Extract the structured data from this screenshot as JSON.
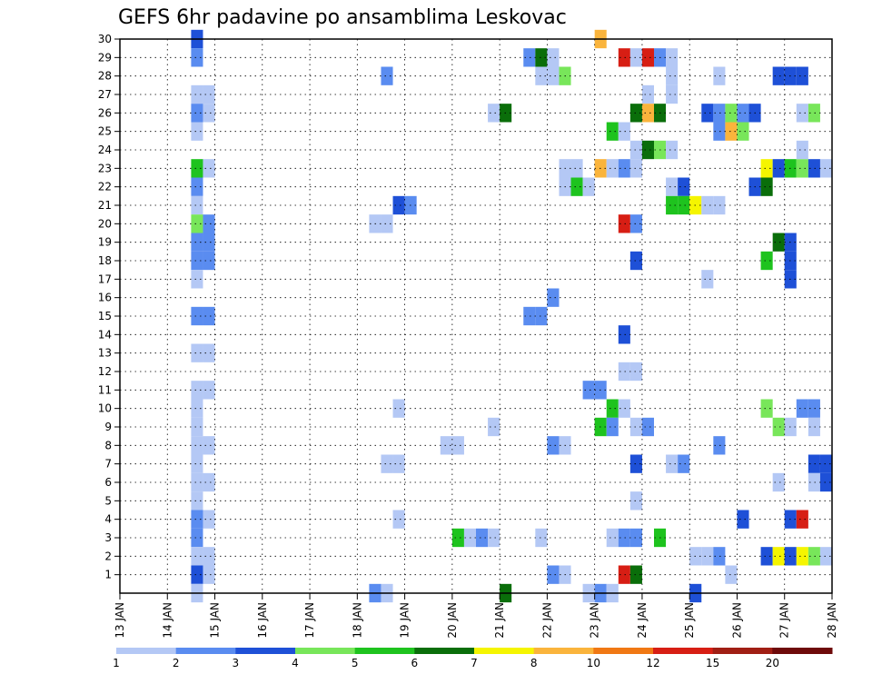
{
  "chart_data": {
    "type": "heatmap",
    "title": "GEFS 6hr padavine po ansamblima Leskovac",
    "xlabel": "",
    "ylabel": "",
    "y_ticks": [
      1,
      2,
      3,
      4,
      5,
      6,
      7,
      8,
      9,
      10,
      11,
      12,
      13,
      14,
      15,
      16,
      17,
      18,
      19,
      20,
      21,
      22,
      23,
      24,
      25,
      26,
      27,
      28,
      29,
      30
    ],
    "x_ticks": [
      "13 JAN",
      "14 JAN",
      "15 JAN",
      "16 JAN",
      "17 JAN",
      "18 JAN",
      "19 JAN",
      "20 JAN",
      "21 JAN",
      "22 JAN",
      "23 JAN",
      "24 JAN",
      "25 JAN",
      "26 JAN",
      "27 JAN",
      "28 JAN"
    ],
    "x_range_days": [
      13,
      28
    ],
    "y_range": [
      0,
      30
    ],
    "grid": true,
    "colorbar": {
      "colors": [
        "#b4c8f5",
        "#5a8cf0",
        "#1e50d7",
        "#78e65a",
        "#1ec31e",
        "#0a6e0a",
        "#f5f500",
        "#fab43c",
        "#f07814",
        "#d71e14",
        "#a01e14",
        "#6e0a0a"
      ],
      "labels": [
        "1",
        "2",
        "3",
        "4",
        "5",
        "6",
        "7",
        "8",
        "10",
        "12",
        "15",
        "20"
      ]
    },
    "cells": [
      {
        "t": "2025-01-14 12:00",
        "m": 30,
        "v": 3
      },
      {
        "t": "2025-01-14 12:00",
        "m": 29,
        "v": 2
      },
      {
        "t": "2025-01-14 12:00",
        "m": 27,
        "v": 1
      },
      {
        "t": "2025-01-14 18:00",
        "m": 27,
        "v": 1
      },
      {
        "t": "2025-01-14 12:00",
        "m": 26,
        "v": 2
      },
      {
        "t": "2025-01-14 18:00",
        "m": 26,
        "v": 1
      },
      {
        "t": "2025-01-14 12:00",
        "m": 25,
        "v": 1
      },
      {
        "t": "2025-01-14 12:00",
        "m": 23,
        "v": 5
      },
      {
        "t": "2025-01-14 18:00",
        "m": 23,
        "v": 1
      },
      {
        "t": "2025-01-14 12:00",
        "m": 22,
        "v": 2
      },
      {
        "t": "2025-01-14 12:00",
        "m": 21,
        "v": 1
      },
      {
        "t": "2025-01-14 12:00",
        "m": 20,
        "v": 4
      },
      {
        "t": "2025-01-14 18:00",
        "m": 20,
        "v": 2
      },
      {
        "t": "2025-01-14 12:00",
        "m": 19,
        "v": 2
      },
      {
        "t": "2025-01-14 18:00",
        "m": 19,
        "v": 2
      },
      {
        "t": "2025-01-14 12:00",
        "m": 18,
        "v": 2
      },
      {
        "t": "2025-01-14 18:00",
        "m": 18,
        "v": 2
      },
      {
        "t": "2025-01-14 12:00",
        "m": 17,
        "v": 1
      },
      {
        "t": "2025-01-14 12:00",
        "m": 15,
        "v": 2
      },
      {
        "t": "2025-01-14 18:00",
        "m": 15,
        "v": 2
      },
      {
        "t": "2025-01-14 12:00",
        "m": 13,
        "v": 1
      },
      {
        "t": "2025-01-14 18:00",
        "m": 13,
        "v": 1
      },
      {
        "t": "2025-01-14 12:00",
        "m": 11,
        "v": 1
      },
      {
        "t": "2025-01-14 18:00",
        "m": 11,
        "v": 1
      },
      {
        "t": "2025-01-14 12:00",
        "m": 10,
        "v": 1
      },
      {
        "t": "2025-01-14 12:00",
        "m": 9,
        "v": 1
      },
      {
        "t": "2025-01-14 12:00",
        "m": 8,
        "v": 1
      },
      {
        "t": "2025-01-14 18:00",
        "m": 8,
        "v": 1
      },
      {
        "t": "2025-01-14 12:00",
        "m": 7,
        "v": 1
      },
      {
        "t": "2025-01-14 12:00",
        "m": 6,
        "v": 1
      },
      {
        "t": "2025-01-14 18:00",
        "m": 6,
        "v": 1
      },
      {
        "t": "2025-01-14 12:00",
        "m": 5,
        "v": 1
      },
      {
        "t": "2025-01-14 12:00",
        "m": 4,
        "v": 2
      },
      {
        "t": "2025-01-14 18:00",
        "m": 4,
        "v": 1
      },
      {
        "t": "2025-01-14 12:00",
        "m": 3,
        "v": 2
      },
      {
        "t": "2025-01-14 12:00",
        "m": 2,
        "v": 1
      },
      {
        "t": "2025-01-14 18:00",
        "m": 2,
        "v": 1
      },
      {
        "t": "2025-01-14 12:00",
        "m": 1,
        "v": 3
      },
      {
        "t": "2025-01-14 18:00",
        "m": 1,
        "v": 1
      },
      {
        "t": "2025-01-14 12:00",
        "m": 0,
        "v": 1
      },
      {
        "t": "2025-01-18 12:00",
        "m": 28,
        "v": 2
      },
      {
        "t": "2025-01-18 06:00",
        "m": 20,
        "v": 1
      },
      {
        "t": "2025-01-18 12:00",
        "m": 20,
        "v": 1
      },
      {
        "t": "2025-01-18 18:00",
        "m": 21,
        "v": 3
      },
      {
        "t": "2025-01-19 00:00",
        "m": 21,
        "v": 2
      },
      {
        "t": "2025-01-18 18:00",
        "m": 10,
        "v": 1
      },
      {
        "t": "2025-01-18 12:00",
        "m": 7,
        "v": 1
      },
      {
        "t": "2025-01-18 18:00",
        "m": 7,
        "v": 1
      },
      {
        "t": "2025-01-18 18:00",
        "m": 4,
        "v": 1
      },
      {
        "t": "2025-01-18 06:00",
        "m": 0,
        "v": 2
      },
      {
        "t": "2025-01-18 12:00",
        "m": 0,
        "v": 1
      },
      {
        "t": "2025-01-19 18:00",
        "m": 8,
        "v": 1
      },
      {
        "t": "2025-01-20 00:00",
        "m": 8,
        "v": 1
      },
      {
        "t": "2025-01-20 00:00",
        "m": 3,
        "v": 5
      },
      {
        "t": "2025-01-20 06:00",
        "m": 3,
        "v": 1
      },
      {
        "t": "2025-01-20 12:00",
        "m": 3,
        "v": 2
      },
      {
        "t": "2025-01-20 18:00",
        "m": 3,
        "v": 1
      },
      {
        "t": "2025-01-20 18:00",
        "m": 26,
        "v": 1
      },
      {
        "t": "2025-01-21 00:00",
        "m": 26,
        "v": 6
      },
      {
        "t": "2025-01-20 18:00",
        "m": 9,
        "v": 1
      },
      {
        "t": "2025-01-21 00:00",
        "m": 0,
        "v": 6
      },
      {
        "t": "2025-01-21 12:00",
        "m": 29,
        "v": 2
      },
      {
        "t": "2025-01-21 18:00",
        "m": 29,
        "v": 6
      },
      {
        "t": "2025-01-22 00:00",
        "m": 29,
        "v": 1
      },
      {
        "t": "2025-01-21 18:00",
        "m": 28,
        "v": 1
      },
      {
        "t": "2025-01-22 00:00",
        "m": 28,
        "v": 1
      },
      {
        "t": "2025-01-22 06:00",
        "m": 28,
        "v": 4
      },
      {
        "t": "2025-01-22 00:00",
        "m": 16,
        "v": 2
      },
      {
        "t": "2025-01-21 12:00",
        "m": 15,
        "v": 2
      },
      {
        "t": "2025-01-21 18:00",
        "m": 15,
        "v": 2
      },
      {
        "t": "2025-01-22 00:00",
        "m": 8,
        "v": 2
      },
      {
        "t": "2025-01-22 06:00",
        "m": 8,
        "v": 1
      },
      {
        "t": "2025-01-21 18:00",
        "m": 3,
        "v": 1
      },
      {
        "t": "2025-01-22 00:00",
        "m": 1,
        "v": 2
      },
      {
        "t": "2025-01-22 06:00",
        "m": 1,
        "v": 1
      },
      {
        "t": "2025-01-22 06:00",
        "m": 23,
        "v": 1
      },
      {
        "t": "2025-01-22 12:00",
        "m": 23,
        "v": 1
      },
      {
        "t": "2025-01-22 06:00",
        "m": 22,
        "v": 1
      },
      {
        "t": "2025-01-22 12:00",
        "m": 22,
        "v": 5
      },
      {
        "t": "2025-01-22 18:00",
        "m": 22,
        "v": 1
      },
      {
        "t": "2025-01-23 00:00",
        "m": 30,
        "v": 8
      },
      {
        "t": "2025-01-23 00:00",
        "m": 23,
        "v": 8
      },
      {
        "t": "2025-01-23 06:00",
        "m": 23,
        "v": 1
      },
      {
        "t": "2025-01-23 12:00",
        "m": 23,
        "v": 2
      },
      {
        "t": "2025-01-23 18:00",
        "m": 23,
        "v": 1
      },
      {
        "t": "2025-01-23 06:00",
        "m": 25,
        "v": 5
      },
      {
        "t": "2025-01-23 12:00",
        "m": 25,
        "v": 1
      },
      {
        "t": "2025-01-22 18:00",
        "m": 11,
        "v": 2
      },
      {
        "t": "2025-01-23 00:00",
        "m": 11,
        "v": 2
      },
      {
        "t": "2025-01-23 06:00",
        "m": 10,
        "v": 5
      },
      {
        "t": "2025-01-23 12:00",
        "m": 10,
        "v": 1
      },
      {
        "t": "2025-01-23 00:00",
        "m": 9,
        "v": 5
      },
      {
        "t": "2025-01-23 06:00",
        "m": 9,
        "v": 2
      },
      {
        "t": "2025-01-23 12:00",
        "m": 14,
        "v": 3
      },
      {
        "t": "2025-01-23 12:00",
        "m": 12,
        "v": 1
      },
      {
        "t": "2025-01-23 18:00",
        "m": 12,
        "v": 1
      },
      {
        "t": "2025-01-23 06:00",
        "m": 3,
        "v": 1
      },
      {
        "t": "2025-01-23 12:00",
        "m": 3,
        "v": 2
      },
      {
        "t": "2025-01-23 18:00",
        "m": 3,
        "v": 2
      },
      {
        "t": "2025-01-23 12:00",
        "m": 1,
        "v": 10
      },
      {
        "t": "2025-01-23 18:00",
        "m": 1,
        "v": 6
      },
      {
        "t": "2025-01-22 18:00",
        "m": 0,
        "v": 1
      },
      {
        "t": "2025-01-23 00:00",
        "m": 0,
        "v": 2
      },
      {
        "t": "2025-01-23 06:00",
        "m": 0,
        "v": 1
      },
      {
        "t": "2025-01-23 12:00",
        "m": 20,
        "v": 10
      },
      {
        "t": "2025-01-23 18:00",
        "m": 20,
        "v": 2
      },
      {
        "t": "2025-01-23 18:00",
        "m": 18,
        "v": 3
      },
      {
        "t": "2025-01-23 12:00",
        "m": 29,
        "v": 10
      },
      {
        "t": "2025-01-23 18:00",
        "m": 29,
        "v": 1
      },
      {
        "t": "2025-01-24 00:00",
        "m": 29,
        "v": 10
      },
      {
        "t": "2025-01-24 06:00",
        "m": 29,
        "v": 2
      },
      {
        "t": "2025-01-24 12:00",
        "m": 29,
        "v": 1
      },
      {
        "t": "2025-01-24 00:00",
        "m": 27,
        "v": 1
      },
      {
        "t": "2025-01-23 18:00",
        "m": 26,
        "v": 6
      },
      {
        "t": "2025-01-24 00:00",
        "m": 26,
        "v": 8
      },
      {
        "t": "2025-01-24 06:00",
        "m": 26,
        "v": 6
      },
      {
        "t": "2025-01-23 18:00",
        "m": 24,
        "v": 1
      },
      {
        "t": "2025-01-24 00:00",
        "m": 24,
        "v": 6
      },
      {
        "t": "2025-01-24 06:00",
        "m": 24,
        "v": 4
      },
      {
        "t": "2025-01-24 12:00",
        "m": 24,
        "v": 1
      },
      {
        "t": "2025-01-23 18:00",
        "m": 9,
        "v": 1
      },
      {
        "t": "2025-01-24 00:00",
        "m": 9,
        "v": 2
      },
      {
        "t": "2025-01-23 18:00",
        "m": 7,
        "v": 3
      },
      {
        "t": "2025-01-23 18:00",
        "m": 5,
        "v": 1
      },
      {
        "t": "2025-01-24 06:00",
        "m": 3,
        "v": 5
      },
      {
        "t": "2025-01-24 12:00",
        "m": 28,
        "v": 1
      },
      {
        "t": "2025-01-24 12:00",
        "m": 27,
        "v": 1
      },
      {
        "t": "2025-01-24 12:00",
        "m": 22,
        "v": 1
      },
      {
        "t": "2025-01-24 18:00",
        "m": 22,
        "v": 3
      },
      {
        "t": "2025-01-24 12:00",
        "m": 21,
        "v": 5
      },
      {
        "t": "2025-01-24 18:00",
        "m": 21,
        "v": 5
      },
      {
        "t": "2025-01-25 00:00",
        "m": 21,
        "v": 7
      },
      {
        "t": "2025-01-25 06:00",
        "m": 21,
        "v": 1
      },
      {
        "t": "2025-01-25 12:00",
        "m": 21,
        "v": 1
      },
      {
        "t": "2025-01-24 12:00",
        "m": 7,
        "v": 1
      },
      {
        "t": "2025-01-24 18:00",
        "m": 7,
        "v": 2
      },
      {
        "t": "2025-01-25 00:00",
        "m": 2,
        "v": 1
      },
      {
        "t": "2025-01-25 06:00",
        "m": 2,
        "v": 1
      },
      {
        "t": "2025-01-25 12:00",
        "m": 2,
        "v": 2
      },
      {
        "t": "2025-01-25 06:00",
        "m": 17,
        "v": 1
      },
      {
        "t": "2025-01-25 00:00",
        "m": 0,
        "v": 3
      },
      {
        "t": "2025-01-25 12:00",
        "m": 28,
        "v": 1
      },
      {
        "t": "2025-01-25 06:00",
        "m": 26,
        "v": 3
      },
      {
        "t": "2025-01-25 12:00",
        "m": 26,
        "v": 2
      },
      {
        "t": "2025-01-25 18:00",
        "m": 26,
        "v": 4
      },
      {
        "t": "2025-01-26 00:00",
        "m": 26,
        "v": 2
      },
      {
        "t": "2025-01-26 06:00",
        "m": 26,
        "v": 3
      },
      {
        "t": "2025-01-25 12:00",
        "m": 25,
        "v": 2
      },
      {
        "t": "2025-01-25 18:00",
        "m": 25,
        "v": 8
      },
      {
        "t": "2025-01-26 00:00",
        "m": 25,
        "v": 4
      },
      {
        "t": "2025-01-25 12:00",
        "m": 8,
        "v": 2
      },
      {
        "t": "2025-01-25 18:00",
        "m": 1,
        "v": 1
      },
      {
        "t": "2025-01-26 00:00",
        "m": 4,
        "v": 3
      },
      {
        "t": "2025-01-26 06:00",
        "m": 22,
        "v": 3
      },
      {
        "t": "2025-01-26 12:00",
        "m": 22,
        "v": 6
      },
      {
        "t": "2025-01-26 12:00",
        "m": 23,
        "v": 7
      },
      {
        "t": "2025-01-26 18:00",
        "m": 23,
        "v": 3
      },
      {
        "t": "2025-01-27 00:00",
        "m": 23,
        "v": 5
      },
      {
        "t": "2025-01-27 06:00",
        "m": 23,
        "v": 4
      },
      {
        "t": "2025-01-27 12:00",
        "m": 23,
        "v": 3
      },
      {
        "t": "2025-01-27 18:00",
        "m": 23,
        "v": 1
      },
      {
        "t": "2025-01-26 18:00",
        "m": 28,
        "v": 3
      },
      {
        "t": "2025-01-27 00:00",
        "m": 28,
        "v": 3
      },
      {
        "t": "2025-01-27 06:00",
        "m": 28,
        "v": 3
      },
      {
        "t": "2025-01-27 06:00",
        "m": 26,
        "v": 1
      },
      {
        "t": "2025-01-27 12:00",
        "m": 26,
        "v": 4
      },
      {
        "t": "2025-01-27 06:00",
        "m": 24,
        "v": 1
      },
      {
        "t": "2025-01-26 18:00",
        "m": 19,
        "v": 6
      },
      {
        "t": "2025-01-27 00:00",
        "m": 19,
        "v": 3
      },
      {
        "t": "2025-01-26 12:00",
        "m": 18,
        "v": 5
      },
      {
        "t": "2025-01-27 00:00",
        "m": 18,
        "v": 3
      },
      {
        "t": "2025-01-27 00:00",
        "m": 17,
        "v": 3
      },
      {
        "t": "2025-01-26 12:00",
        "m": 10,
        "v": 4
      },
      {
        "t": "2025-01-27 06:00",
        "m": 10,
        "v": 2
      },
      {
        "t": "2025-01-27 12:00",
        "m": 10,
        "v": 2
      },
      {
        "t": "2025-01-26 18:00",
        "m": 9,
        "v": 4
      },
      {
        "t": "2025-01-27 00:00",
        "m": 9,
        "v": 1
      },
      {
        "t": "2025-01-27 12:00",
        "m": 9,
        "v": 1
      },
      {
        "t": "2025-01-27 12:00",
        "m": 7,
        "v": 3
      },
      {
        "t": "2025-01-27 18:00",
        "m": 7,
        "v": 3
      },
      {
        "t": "2025-01-26 18:00",
        "m": 6,
        "v": 1
      },
      {
        "t": "2025-01-27 12:00",
        "m": 6,
        "v": 1
      },
      {
        "t": "2025-01-27 18:00",
        "m": 6,
        "v": 3
      },
      {
        "t": "2025-01-27 00:00",
        "m": 4,
        "v": 3
      },
      {
        "t": "2025-01-27 06:00",
        "m": 4,
        "v": 10
      },
      {
        "t": "2025-01-26 12:00",
        "m": 2,
        "v": 3
      },
      {
        "t": "2025-01-26 18:00",
        "m": 2,
        "v": 7
      },
      {
        "t": "2025-01-27 00:00",
        "m": 2,
        "v": 3
      },
      {
        "t": "2025-01-27 06:00",
        "m": 2,
        "v": 7
      },
      {
        "t": "2025-01-27 12:00",
        "m": 2,
        "v": 4
      },
      {
        "t": "2025-01-27 18:00",
        "m": 2,
        "v": 1
      }
    ]
  }
}
